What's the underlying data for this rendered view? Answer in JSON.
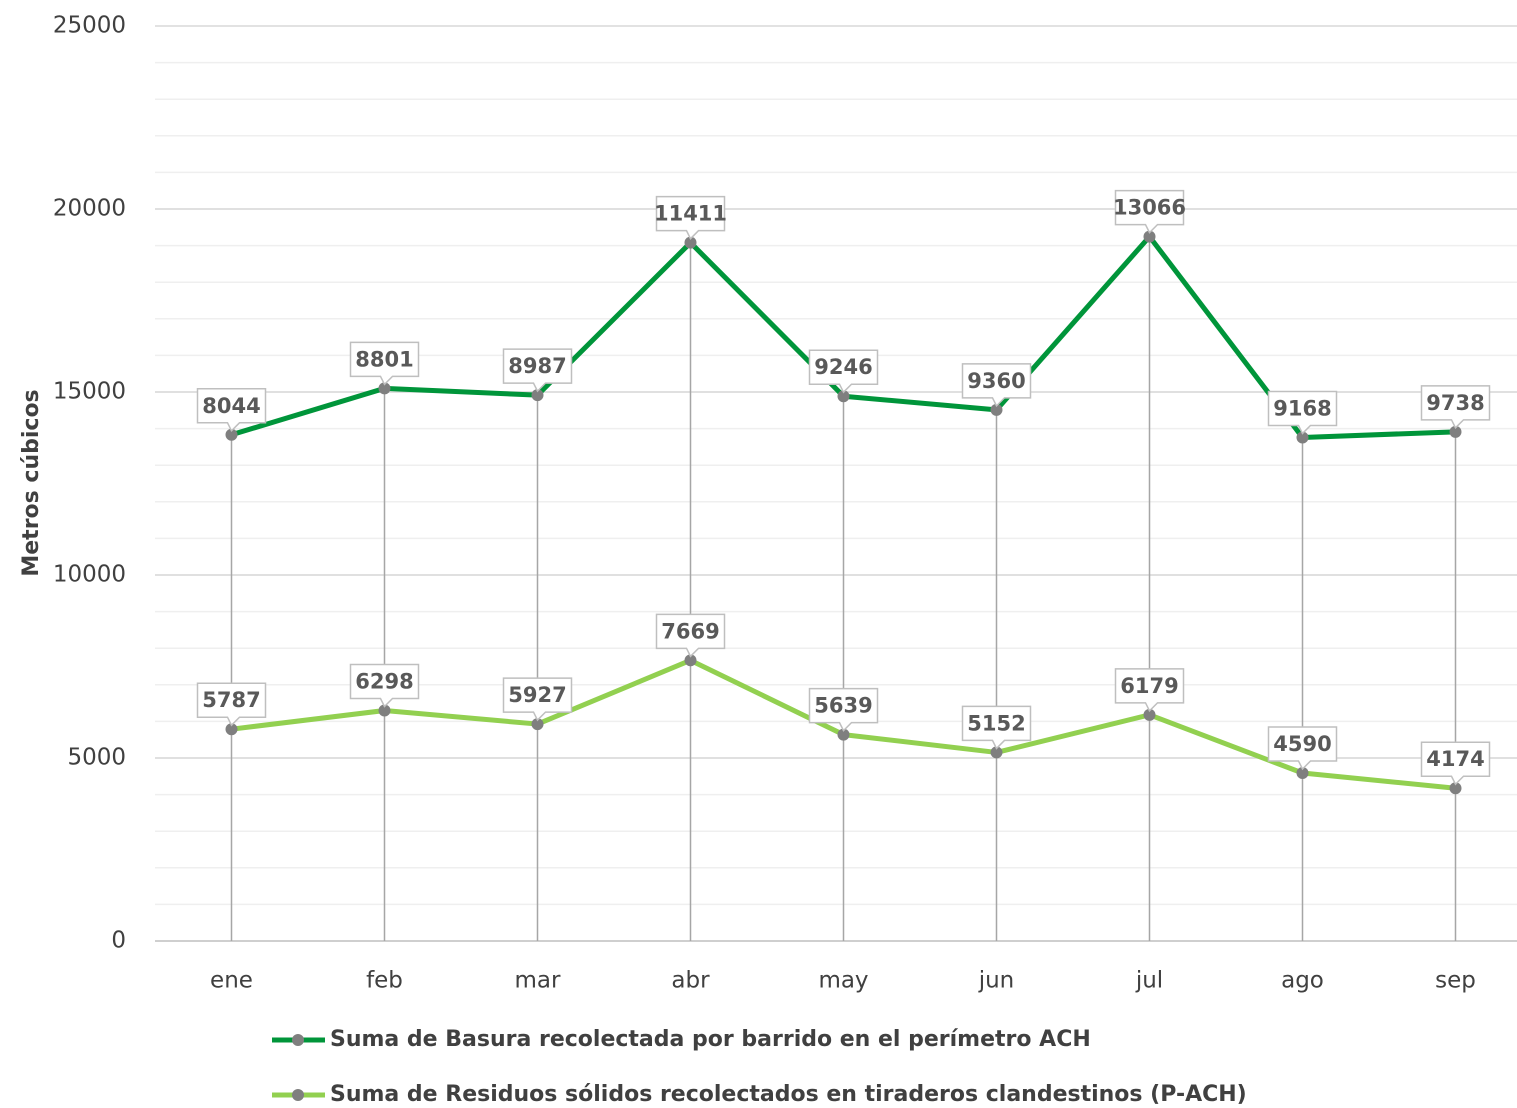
{
  "chart_data": {
    "type": "stacked_line",
    "y_axis_label": "Metros cúbicos",
    "categories": [
      "ene",
      "feb",
      "mar",
      "abr",
      "may",
      "jun",
      "jul",
      "ago",
      "sep"
    ],
    "series": [
      {
        "name": "Suma de Residuos sólidos recolectados en tiraderos clandestinos (P-ACH)",
        "color": "#92d050",
        "values": [
          5787,
          6298,
          5927,
          7669,
          5639,
          5152,
          6179,
          4590,
          4174
        ]
      },
      {
        "name": "Suma de Basura recolectada por barrido en el perímetro ACH",
        "color": "#00953a",
        "values": [
          8044,
          8801,
          8987,
          11411,
          9246,
          9360,
          13066,
          9168,
          9738
        ]
      }
    ],
    "ylim": [
      0,
      25000
    ],
    "yticks": [
      0,
      5000,
      10000,
      15000,
      20000,
      25000
    ],
    "grid": true,
    "minor_grid_step": 1000,
    "drop_lines": true,
    "legend": "bottom",
    "marker_color": "#7f7f7f"
  }
}
